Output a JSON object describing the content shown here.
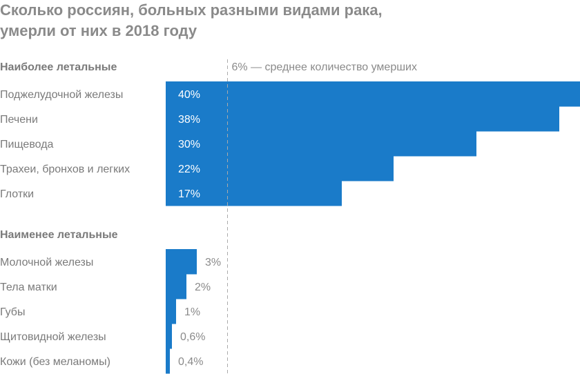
{
  "chart_data": {
    "type": "bar",
    "orientation": "horizontal",
    "title": "Сколько россиян, больных разными видами рака, умерли от них в 2018 году",
    "title_lines": [
      "Сколько россиян, больных разными видами рака,",
      "умерли от них в 2018 году"
    ],
    "unit": "%",
    "xlim": [
      0,
      40
    ],
    "grid": false,
    "bar_color": "#1a7bc9",
    "reference_line": {
      "value": 6,
      "label": "6% — среднее количество умерших"
    },
    "groups": [
      {
        "name": "Наиболее летальные",
        "categories": [
          "Поджелудочной железы",
          "Печени",
          "Пищевода",
          "Трахеи, бронхов и легких",
          "Глотки"
        ],
        "values": [
          40,
          38,
          30,
          22,
          17
        ],
        "labels": [
          "40%",
          "38%",
          "30%",
          "22%",
          "17%"
        ]
      },
      {
        "name": "Наименее летальные",
        "categories": [
          "Молочной железы",
          "Тела матки",
          "Губы",
          "Щитовидной железы",
          "Кожи (без меланомы)"
        ],
        "values": [
          3,
          2,
          1,
          0.6,
          0.4
        ],
        "labels": [
          "3%",
          "2%",
          "1%",
          "0,6%",
          "0,4%"
        ]
      }
    ]
  }
}
